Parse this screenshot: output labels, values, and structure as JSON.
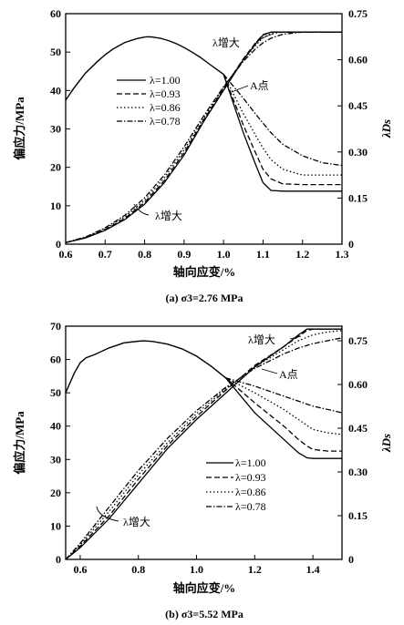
{
  "line_styles": [
    {
      "name": "solid",
      "dash": ""
    },
    {
      "name": "dashed",
      "dash": "6,3"
    },
    {
      "name": "dotted",
      "dash": "1.5,2.5"
    },
    {
      "name": "dash-dot",
      "dash": "6,2,1.5,2"
    }
  ],
  "chart_data": [
    {
      "type": "line",
      "caption": "(a) σ3=2.76 MPa",
      "xlabel": "轴向应变/%",
      "ylabel": "偏应力/MPa",
      "y2label": "λDs",
      "xlim": [
        0.6,
        1.3
      ],
      "ylim": [
        0,
        60
      ],
      "y2lim": [
        0,
        0.75
      ],
      "xticks": [
        "0.6",
        "0.7",
        "0.8",
        "0.9",
        "1.0",
        "1.1",
        "1.2",
        "1.3"
      ],
      "yticks": [
        "0",
        "10",
        "20",
        "30",
        "40",
        "50",
        "60"
      ],
      "y2ticks": [
        "0",
        "0.15",
        "0.30",
        "0.45",
        "0.60",
        "0.75"
      ],
      "grid": false,
      "legend_position": "center-left",
      "legend": [
        "λ=1.00",
        "λ=0.93",
        "λ=0.86",
        "λ=0.78"
      ],
      "annotations": [
        "λ增大",
        "A点",
        "λ增大"
      ],
      "stress_curve": {
        "x": [
          0.6,
          0.62,
          0.65,
          0.68,
          0.7,
          0.72,
          0.75,
          0.78,
          0.8,
          0.81,
          0.82,
          0.84,
          0.86,
          0.88,
          0.9,
          0.92,
          0.94,
          0.96,
          0.98,
          1.0
        ],
        "y": [
          37.5,
          40.5,
          44.5,
          47.5,
          49.3,
          50.8,
          52.5,
          53.5,
          53.9,
          54,
          53.9,
          53.6,
          53,
          52.2,
          51.2,
          50,
          48.7,
          47.2,
          45.7,
          44.2
        ]
      },
      "series": [
        {
          "name": "λ=1.00",
          "style": "solid",
          "x": [
            0.6,
            0.65,
            0.7,
            0.75,
            0.8,
            0.85,
            0.9,
            0.95,
            1.0,
            1.05,
            1.08,
            1.1,
            1.12,
            1.15,
            1.2,
            1.25,
            1.3
          ],
          "damage": [
            0.005,
            0.02,
            0.045,
            0.08,
            0.13,
            0.2,
            0.29,
            0.4,
            0.5,
            0.6,
            0.65,
            0.68,
            0.69,
            0.69,
            0.69,
            0.69,
            0.69
          ],
          "stress": [
            null,
            null,
            null,
            null,
            null,
            null,
            null,
            null,
            44.2,
            29,
            21,
            16,
            14,
            13.8,
            13.8,
            13.8,
            13.8
          ]
        },
        {
          "name": "λ=0.93",
          "style": "dashed",
          "x": [
            0.6,
            0.65,
            0.7,
            0.75,
            0.8,
            0.85,
            0.9,
            0.95,
            1.0,
            1.05,
            1.08,
            1.1,
            1.12,
            1.15,
            1.2,
            1.25,
            1.3
          ],
          "damage": [
            0.005,
            0.021,
            0.047,
            0.084,
            0.136,
            0.207,
            0.298,
            0.405,
            0.505,
            0.603,
            0.653,
            0.682,
            0.69,
            0.69,
            0.69,
            0.69,
            0.69
          ],
          "stress": [
            null,
            null,
            null,
            null,
            null,
            null,
            null,
            null,
            44.2,
            31,
            24,
            19.5,
            17,
            15.7,
            15.5,
            15.5,
            15.5
          ]
        },
        {
          "name": "λ=0.86",
          "style": "dotted",
          "x": [
            0.6,
            0.65,
            0.7,
            0.75,
            0.8,
            0.85,
            0.9,
            0.95,
            1.0,
            1.05,
            1.08,
            1.1,
            1.12,
            1.15,
            1.2,
            1.25,
            1.3
          ],
          "damage": [
            0.005,
            0.022,
            0.05,
            0.089,
            0.143,
            0.216,
            0.307,
            0.41,
            0.51,
            0.6,
            0.645,
            0.672,
            0.685,
            0.69,
            0.69,
            0.69,
            0.69
          ],
          "stress": [
            null,
            null,
            null,
            null,
            null,
            null,
            null,
            null,
            44.2,
            34,
            28.5,
            25,
            22,
            19.5,
            18,
            18,
            18
          ]
        },
        {
          "name": "λ=0.78",
          "style": "dash-dot",
          "x": [
            0.6,
            0.65,
            0.7,
            0.75,
            0.8,
            0.85,
            0.9,
            0.95,
            1.0,
            1.05,
            1.08,
            1.1,
            1.12,
            1.15,
            1.2,
            1.25,
            1.3
          ],
          "damage": [
            0.005,
            0.023,
            0.053,
            0.094,
            0.151,
            0.225,
            0.317,
            0.418,
            0.512,
            0.595,
            0.634,
            0.655,
            0.67,
            0.683,
            0.69,
            0.69,
            0.69
          ],
          "stress": [
            null,
            null,
            null,
            null,
            null,
            null,
            null,
            null,
            44.2,
            38,
            34,
            31.5,
            29,
            26,
            23,
            21.2,
            20.5
          ]
        }
      ]
    },
    {
      "type": "line",
      "caption": "(b) σ3=5.52 MPa",
      "xlabel": "轴向应变/%",
      "ylabel": "偏应力/MPa",
      "y2label": "λDs",
      "xlim": [
        0.55,
        1.5
      ],
      "ylim": [
        0,
        70
      ],
      "y2lim": [
        0,
        0.8
      ],
      "xticks": [
        "0.6",
        "0.8",
        "1.0",
        "1.2",
        "1.4"
      ],
      "yticks": [
        "0",
        "10",
        "20",
        "30",
        "40",
        "50",
        "60",
        "70"
      ],
      "y2ticks": [
        "0",
        "0.15",
        "0.30",
        "0.45",
        "0.60",
        "0.75"
      ],
      "grid": false,
      "legend_position": "center-right",
      "legend": [
        "λ=1.00",
        "λ=0.93",
        "λ=0.86",
        "λ=0.78"
      ],
      "annotations": [
        "λ增大",
        "A点",
        "λ增大"
      ],
      "stress_curve": {
        "x": [
          0.55,
          0.58,
          0.6,
          0.62,
          0.65,
          0.7,
          0.75,
          0.8,
          0.82,
          0.85,
          0.9,
          0.95,
          1.0,
          1.05,
          1.1,
          1.12
        ],
        "y": [
          50,
          56,
          59,
          60.5,
          61.5,
          63.5,
          65,
          65.5,
          65.6,
          65.4,
          64.6,
          63.2,
          61,
          58,
          54.5,
          53
        ]
      },
      "series": [
        {
          "name": "λ=1.00",
          "style": "solid",
          "x": [
            0.55,
            0.6,
            0.7,
            0.8,
            0.9,
            1.0,
            1.1,
            1.2,
            1.3,
            1.35,
            1.38,
            1.4,
            1.45,
            1.5
          ],
          "damage": [
            0,
            0.04,
            0.14,
            0.26,
            0.38,
            0.48,
            0.57,
            0.66,
            0.73,
            0.77,
            0.79,
            0.79,
            0.79,
            0.79
          ],
          "stress": [
            null,
            null,
            null,
            null,
            null,
            null,
            54.5,
            44,
            36,
            32,
            30.5,
            30.3,
            30.3,
            30.3
          ]
        },
        {
          "name": "λ=0.93",
          "style": "dashed",
          "x": [
            0.55,
            0.6,
            0.7,
            0.8,
            0.9,
            1.0,
            1.1,
            1.2,
            1.3,
            1.35,
            1.38,
            1.4,
            1.45,
            1.5
          ],
          "damage": [
            0,
            0.045,
            0.15,
            0.275,
            0.39,
            0.49,
            0.58,
            0.665,
            0.73,
            0.765,
            0.785,
            0.79,
            0.79,
            0.79
          ],
          "stress": [
            null,
            null,
            null,
            null,
            null,
            null,
            54.5,
            47,
            40,
            36,
            34,
            33,
            32.5,
            32.5
          ]
        },
        {
          "name": "λ=0.86",
          "style": "dotted",
          "x": [
            0.55,
            0.6,
            0.7,
            0.8,
            0.9,
            1.0,
            1.1,
            1.2,
            1.3,
            1.35,
            1.4,
            1.45,
            1.5
          ],
          "damage": [
            0,
            0.05,
            0.165,
            0.29,
            0.4,
            0.5,
            0.585,
            0.66,
            0.72,
            0.75,
            0.77,
            0.78,
            0.785
          ],
          "stress": [
            null,
            null,
            null,
            null,
            null,
            null,
            54.5,
            50,
            45,
            42,
            39,
            38,
            37.5
          ]
        },
        {
          "name": "λ=0.78",
          "style": "dash-dot",
          "x": [
            0.55,
            0.6,
            0.7,
            0.8,
            0.9,
            1.0,
            1.1,
            1.2,
            1.3,
            1.35,
            1.4,
            1.45,
            1.5
          ],
          "damage": [
            0,
            0.055,
            0.18,
            0.305,
            0.415,
            0.51,
            0.59,
            0.655,
            0.705,
            0.725,
            0.74,
            0.75,
            0.76
          ],
          "stress": [
            null,
            null,
            null,
            null,
            null,
            null,
            54.5,
            52,
            49,
            47.5,
            46,
            45,
            44
          ]
        }
      ]
    }
  ]
}
